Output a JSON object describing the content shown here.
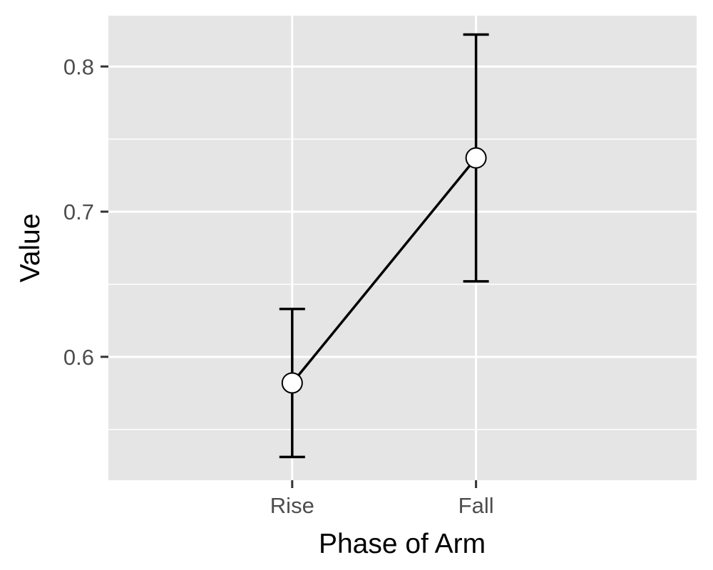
{
  "chart_data": {
    "type": "line",
    "categories": [
      "Rise",
      "Fall"
    ],
    "series": [
      {
        "values": [
          0.582,
          0.737
        ],
        "error_lower": [
          0.531,
          0.652
        ],
        "error_upper": [
          0.633,
          0.822
        ]
      }
    ],
    "xlabel": "Phase of Arm",
    "ylabel": "Value",
    "ylim": [
      0.515,
      0.835
    ],
    "y_ticks": [
      0.6,
      0.7,
      0.8
    ],
    "y_tick_labels": [
      "0.6",
      "0.7",
      "0.8"
    ],
    "y_minor_ticks": [
      0.55,
      0.65,
      0.75
    ],
    "grid": true,
    "legend": "none",
    "colors": {
      "panel_background": "#e5e5e5",
      "grid": "#ffffff",
      "line": "#000000",
      "marker_fill": "#ffffff",
      "marker_stroke": "#000000",
      "tick": "#333333"
    }
  }
}
